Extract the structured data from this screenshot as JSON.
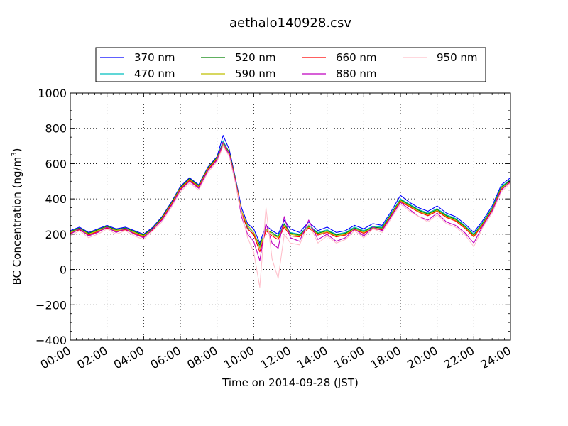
{
  "chart_data": {
    "type": "line",
    "title": "aethalo140928.csv",
    "xlabel": "Time on 2014-09-28 (JST)",
    "ylabel": "BC Concentration (ng/m³)",
    "ylabel_main": "BC Concentration (ng/m",
    "ylabel_exp": "3",
    "ylabel_close": ")",
    "xlim": [
      "00:00",
      "24:00"
    ],
    "ylim": [
      -400,
      1000
    ],
    "x_ticks": [
      "00:00",
      "02:00",
      "04:00",
      "06:00",
      "08:00",
      "10:00",
      "12:00",
      "14:00",
      "16:00",
      "18:00",
      "20:00",
      "22:00",
      "24:00"
    ],
    "y_ticks": [
      -400,
      -200,
      0,
      200,
      400,
      600,
      800,
      1000
    ],
    "grid": true,
    "legend_position": "top, above plot",
    "x": [
      "00:00",
      "00:30",
      "01:00",
      "01:30",
      "02:00",
      "02:30",
      "03:00",
      "03:30",
      "04:00",
      "04:30",
      "05:00",
      "05:30",
      "06:00",
      "06:30",
      "07:00",
      "07:30",
      "08:00",
      "08:20",
      "08:40",
      "09:00",
      "09:20",
      "09:40",
      "10:00",
      "10:20",
      "10:40",
      "11:00",
      "11:20",
      "11:40",
      "12:00",
      "12:30",
      "13:00",
      "13:30",
      "14:00",
      "14:30",
      "15:00",
      "15:30",
      "16:00",
      "16:30",
      "17:00",
      "17:30",
      "18:00",
      "18:30",
      "19:00",
      "19:30",
      "20:00",
      "20:30",
      "21:00",
      "21:30",
      "22:00",
      "22:30",
      "23:00",
      "23:30",
      "24:00"
    ],
    "series": [
      {
        "name": "370 nm",
        "color": "#0000ff",
        "values": [
          220,
          240,
          210,
          230,
          250,
          230,
          240,
          220,
          200,
          240,
          300,
          380,
          470,
          520,
          480,
          580,
          640,
          760,
          680,
          520,
          350,
          260,
          230,
          150,
          250,
          220,
          200,
          280,
          230,
          210,
          270,
          220,
          240,
          210,
          220,
          250,
          230,
          260,
          250,
          330,
          420,
          380,
          350,
          330,
          360,
          320,
          300,
          260,
          210,
          280,
          360,
          480,
          520
        ]
      },
      {
        "name": "470 nm",
        "color": "#00bfbf",
        "values": [
          210,
          230,
          200,
          220,
          240,
          220,
          230,
          210,
          195,
          230,
          290,
          370,
          460,
          510,
          470,
          570,
          630,
          730,
          660,
          510,
          330,
          240,
          210,
          130,
          230,
          200,
          190,
          260,
          210,
          200,
          250,
          210,
          225,
          200,
          210,
          240,
          220,
          245,
          240,
          320,
          400,
          370,
          340,
          320,
          345,
          310,
          290,
          250,
          200,
          270,
          350,
          470,
          510
        ]
      },
      {
        "name": "520 nm",
        "color": "#008000",
        "values": [
          215,
          235,
          205,
          225,
          245,
          225,
          235,
          215,
          195,
          235,
          295,
          375,
          465,
          515,
          475,
          575,
          635,
          720,
          665,
          515,
          320,
          230,
          200,
          140,
          220,
          210,
          185,
          255,
          205,
          195,
          245,
          205,
          220,
          195,
          205,
          235,
          215,
          240,
          235,
          315,
          395,
          365,
          335,
          315,
          340,
          305,
          285,
          245,
          195,
          265,
          345,
          465,
          505
        ]
      },
      {
        "name": "590 nm",
        "color": "#bfbf00",
        "values": [
          210,
          230,
          200,
          220,
          240,
          220,
          230,
          210,
          190,
          230,
          290,
          370,
          460,
          510,
          470,
          570,
          630,
          710,
          660,
          510,
          330,
          250,
          210,
          120,
          230,
          200,
          180,
          250,
          200,
          190,
          240,
          200,
          215,
          190,
          200,
          230,
          210,
          235,
          230,
          310,
          390,
          360,
          330,
          310,
          335,
          300,
          280,
          240,
          190,
          260,
          340,
          460,
          500
        ]
      },
      {
        "name": "660 nm",
        "color": "#ff0000",
        "values": [
          205,
          225,
          195,
          215,
          235,
          215,
          225,
          205,
          185,
          225,
          285,
          365,
          455,
          505,
          465,
          565,
          625,
          700,
          655,
          505,
          320,
          230,
          200,
          100,
          220,
          190,
          170,
          240,
          190,
          185,
          235,
          195,
          210,
          185,
          195,
          225,
          205,
          230,
          225,
          305,
          385,
          355,
          325,
          305,
          330,
          295,
          275,
          235,
          185,
          255,
          335,
          455,
          495
        ]
      },
      {
        "name": "880 nm",
        "color": "#bf00bf",
        "values": [
          200,
          230,
          190,
          210,
          240,
          210,
          230,
          200,
          180,
          230,
          280,
          360,
          450,
          500,
          460,
          560,
          620,
          720,
          650,
          500,
          300,
          200,
          160,
          50,
          260,
          150,
          120,
          300,
          180,
          160,
          280,
          170,
          200,
          160,
          180,
          230,
          190,
          240,
          220,
          300,
          380,
          340,
          300,
          280,
          320,
          270,
          250,
          210,
          150,
          250,
          330,
          450,
          500
        ]
      },
      {
        "name": "950 nm",
        "color": "#ffc0cb",
        "values": [
          190,
          220,
          180,
          200,
          230,
          200,
          220,
          190,
          170,
          220,
          270,
          350,
          440,
          490,
          450,
          550,
          610,
          700,
          640,
          490,
          320,
          180,
          100,
          -100,
          350,
          60,
          -50,
          200,
          150,
          140,
          260,
          150,
          190,
          150,
          170,
          220,
          180,
          230,
          210,
          290,
          370,
          330,
          300,
          270,
          310,
          260,
          240,
          200,
          130,
          240,
          320,
          440,
          490
        ]
      }
    ]
  }
}
